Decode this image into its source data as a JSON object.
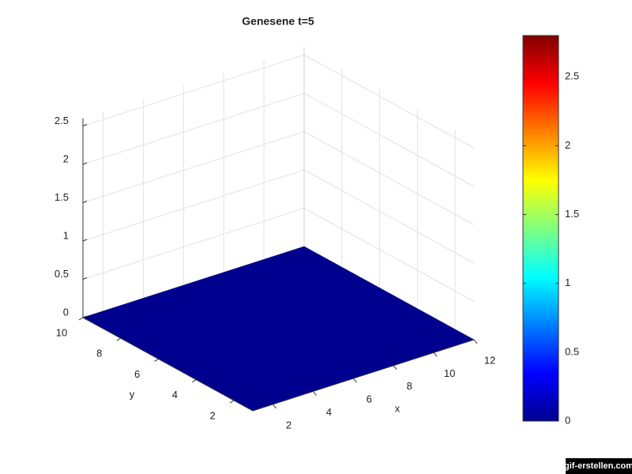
{
  "chart_data": {
    "type": "surface",
    "title": "Genesene t=5",
    "x_label": "x",
    "y_label": "y",
    "x": [
      1,
      12
    ],
    "y": [
      1,
      10
    ],
    "z": [
      [
        0,
        0
      ],
      [
        0,
        0
      ]
    ],
    "xlim": [
      1,
      12
    ],
    "ylim": [
      1,
      10
    ],
    "zlim": [
      0,
      2.6
    ],
    "xticks": [
      2,
      4,
      6,
      8,
      10,
      12
    ],
    "yticks": [
      2,
      4,
      6,
      8,
      10
    ],
    "zticks": [
      0,
      0.5,
      1,
      1.5,
      2,
      2.5
    ],
    "colormap": "jet",
    "grid": true,
    "colorbar": {
      "clim": [
        0,
        2.8
      ],
      "ticks": [
        0,
        0.5,
        1,
        1.5,
        2,
        2.5
      ]
    }
  },
  "watermark": "gif-erstellen.com"
}
